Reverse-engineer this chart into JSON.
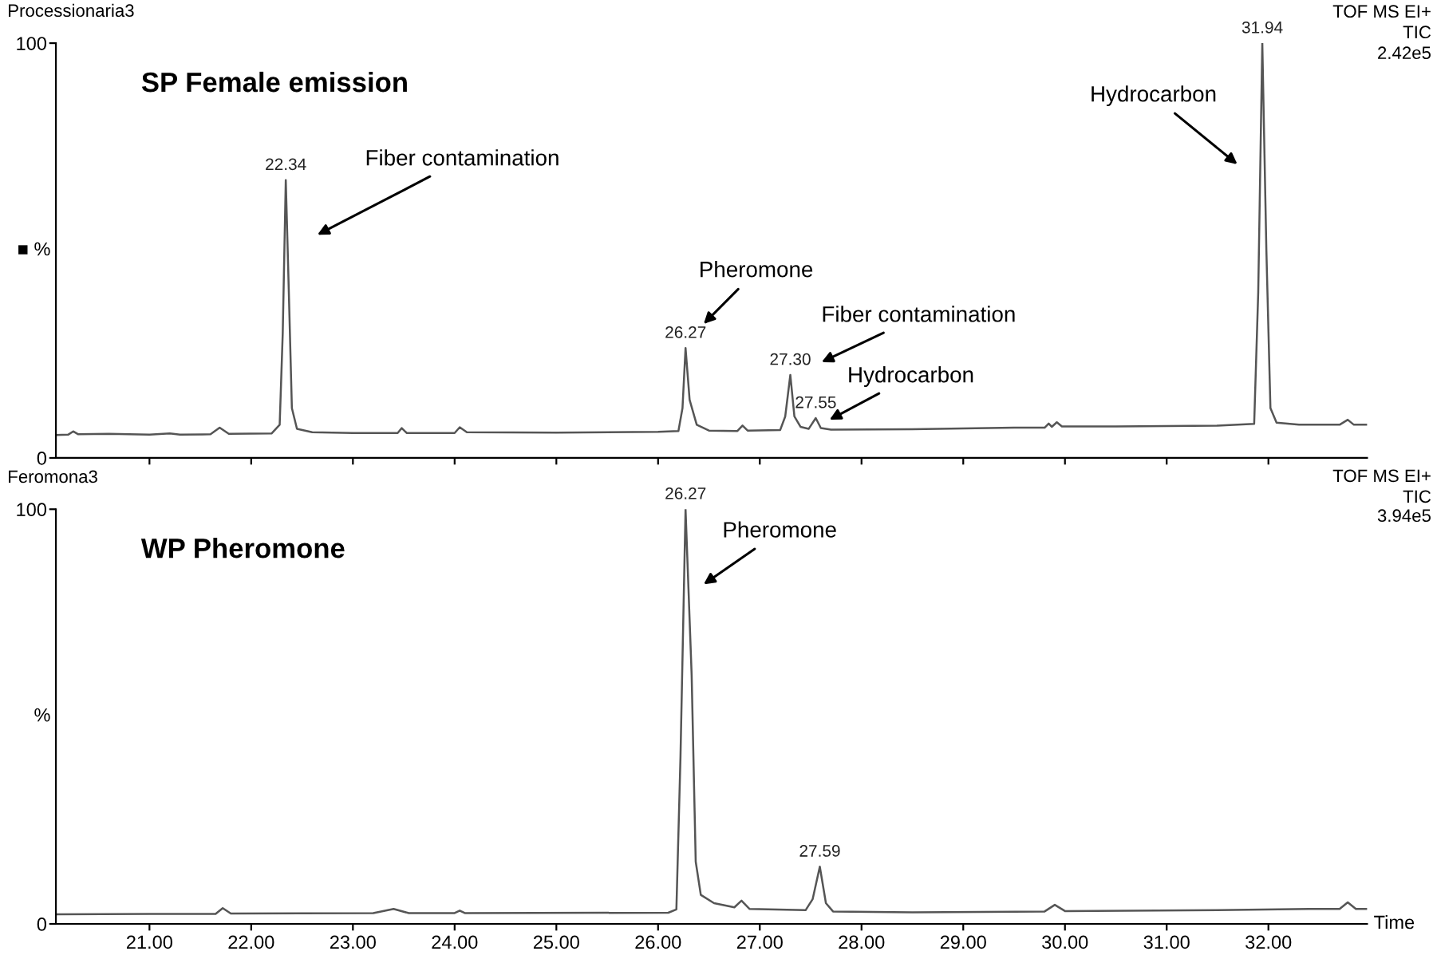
{
  "chart_data": [
    {
      "type": "line",
      "title": "Processionaria3",
      "subtitle": "SP Female emission",
      "ylabel": "■ %",
      "xlim": [
        20.08,
        32.97
      ],
      "ylim": [
        0,
        100
      ],
      "yticks": [
        0,
        100
      ],
      "xticks": [
        {
          "value": 21,
          "label": null
        },
        {
          "value": 22,
          "label": null
        },
        {
          "value": 23,
          "label": null
        },
        {
          "value": 24,
          "label": null
        },
        {
          "value": 25,
          "label": null
        },
        {
          "value": 26,
          "label": null
        },
        {
          "value": 27,
          "label": null
        },
        {
          "value": 28,
          "label": null
        },
        {
          "value": 29,
          "label": null
        },
        {
          "value": 30,
          "label": null
        },
        {
          "value": 31,
          "label": null
        },
        {
          "value": 32,
          "label": null
        }
      ],
      "tick_labels": "y",
      "grid": false,
      "legend": false,
      "marker": "none",
      "line_style": "solid",
      "series": [
        {
          "color": "#555555",
          "x": [
            20.08,
            20.2,
            20.25,
            20.3,
            20.6,
            21.0,
            21.2,
            21.3,
            21.6,
            21.69,
            21.78,
            22.2,
            22.28,
            22.31,
            22.34,
            22.37,
            22.4,
            22.45,
            22.6,
            23.0,
            23.44,
            23.48,
            23.53,
            24.0,
            24.05,
            24.12,
            25.0,
            26.0,
            26.2,
            26.24,
            26.27,
            26.31,
            26.38,
            26.5,
            26.78,
            26.83,
            26.88,
            27.2,
            27.25,
            27.3,
            27.34,
            27.4,
            27.48,
            27.55,
            27.6,
            27.7,
            28.5,
            29.5,
            29.8,
            29.84,
            29.87,
            29.92,
            29.97,
            30.5,
            31.5,
            31.86,
            31.9,
            31.94,
            31.98,
            32.02,
            32.08,
            32.3,
            32.7,
            32.78,
            32.84,
            32.97
          ],
          "values": [
            5.5,
            5.6,
            6.4,
            5.7,
            5.8,
            5.6,
            5.9,
            5.6,
            5.7,
            7.3,
            5.8,
            5.9,
            8,
            30,
            67,
            40,
            12,
            7,
            6.2,
            6.0,
            6.0,
            7.2,
            6.0,
            6.0,
            7.4,
            6.2,
            6.1,
            6.3,
            6.5,
            12,
            26.5,
            14,
            8,
            6.6,
            6.5,
            7.8,
            6.6,
            6.7,
            10,
            20,
            10,
            7.5,
            7,
            9.6,
            7.2,
            6.8,
            6.9,
            7.3,
            7.3,
            8.3,
            7.5,
            8.6,
            7.6,
            7.6,
            7.8,
            8.2,
            40,
            100,
            50,
            12,
            8.5,
            8.0,
            8.0,
            9.2,
            8.0,
            8.0
          ]
        }
      ],
      "annotations": [
        "TOF MS EI+",
        "TIC",
        "2.42e5",
        {
          "text": "22.34",
          "x": 22.34,
          "y": 67
        },
        {
          "text": "26.27",
          "x": 26.27,
          "y": 26.5
        },
        {
          "text": "27.30",
          "x": 27.3,
          "y": 20
        },
        {
          "text": "27.55",
          "x": 27.55,
          "y": 9.6
        },
        {
          "text": "31.94",
          "x": 31.94,
          "y": 100
        },
        "Fiber contamination",
        "Pheromone",
        "Fiber contamination",
        "Hydrocarbon",
        "Hydrocarbon"
      ]
    },
    {
      "type": "line",
      "title": "Feromona3",
      "subtitle": "WP Pheromone",
      "ylabel": "%",
      "xlabel": "Time",
      "xlim": [
        20.08,
        32.97
      ],
      "ylim": [
        0,
        100
      ],
      "yticks": [
        0,
        100
      ],
      "xticks": [
        {
          "value": 21,
          "label": "21.00"
        },
        {
          "value": 22,
          "label": "22.00"
        },
        {
          "value": 23,
          "label": "23.00"
        },
        {
          "value": 24,
          "label": "24.00"
        },
        {
          "value": 25,
          "label": "25.00"
        },
        {
          "value": 26,
          "label": "26.00"
        },
        {
          "value": 27,
          "label": "27.00"
        },
        {
          "value": 28,
          "label": "28.00"
        },
        {
          "value": 29,
          "label": "29.00"
        },
        {
          "value": 30,
          "label": "30.00"
        },
        {
          "value": 31,
          "label": "31.00"
        },
        {
          "value": 32,
          "label": "32.00"
        }
      ],
      "grid": false,
      "legend": false,
      "marker": "none",
      "line_style": "solid",
      "series": [
        {
          "color": "#555555",
          "x": [
            20.08,
            21.0,
            21.65,
            21.72,
            21.8,
            23.2,
            23.4,
            23.55,
            24.0,
            24.05,
            24.1,
            26.1,
            26.18,
            26.22,
            26.27,
            26.33,
            26.37,
            26.42,
            26.55,
            26.75,
            26.82,
            26.9,
            27.45,
            27.52,
            27.59,
            27.65,
            27.72,
            28.5,
            29.8,
            29.9,
            30.0,
            31.5,
            32.4,
            32.7,
            32.78,
            32.86,
            32.97
          ],
          "values": [
            2.3,
            2.4,
            2.4,
            3.8,
            2.5,
            2.6,
            3.6,
            2.6,
            2.6,
            3.2,
            2.6,
            2.7,
            3.5,
            40,
            100,
            60,
            15,
            7,
            5,
            4.0,
            5.6,
            3.6,
            3.3,
            6,
            13.8,
            5,
            3,
            2.8,
            3.0,
            4.6,
            3.1,
            3.3,
            3.6,
            3.6,
            5.2,
            3.6,
            3.6
          ]
        }
      ],
      "annotations": [
        "TOF MS EI+",
        "TIC",
        "3.94e5",
        {
          "text": "26.27",
          "x": 26.27,
          "y": 100
        },
        {
          "text": "27.59",
          "x": 27.59,
          "y": 13.8
        },
        "Pheromone"
      ]
    }
  ]
}
